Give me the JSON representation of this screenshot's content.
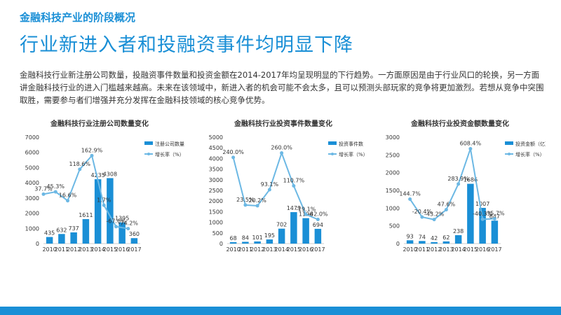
{
  "header": {
    "subtitle": "金融科技产业的阶段概况",
    "title": "行业新进入者和投融资事件均明显下降"
  },
  "body": {
    "paragraph": "金融科技行业新注册公司数量，投融资事件数量和投资金额在2014-2017年均呈现明显的下行趋势。一方面原因是由于行业风口的轮换，另一方面讲金融科技行业的进入门槛越来越高。未来在该领域中，新进入者的机会可能不会太多，且可以预测头部玩家的竞争将更加激烈。若想从竞争中突围取胜，需要参与者们增强并充分发挥在金融科技领域的核心竞争优势。"
  },
  "colors": {
    "accent": "#1a8fd6",
    "bar": "#1a8fd6",
    "line": "#6cb8e4"
  },
  "chart_data": [
    {
      "type": "bar",
      "title": "金融科技行业注册公司数量变化",
      "categories": [
        "2010",
        "2011",
        "2012",
        "2013",
        "2014",
        "2015",
        "2016",
        "2017"
      ],
      "ylim": [
        0,
        7000
      ],
      "yticks": [
        "0",
        "1000",
        "2000",
        "3000",
        "4000",
        "5000",
        "6000",
        "7000"
      ],
      "series": [
        {
          "name": "注册公司数量",
          "type": "bar",
          "values": [
            435,
            632,
            737,
            1611,
            4235,
            4308,
            1395,
            360
          ]
        },
        {
          "name": "增长率（%）",
          "type": "line",
          "values": [
            null,
            45.3,
            16.6,
            118.6,
            162.9,
            1.7,
            -67.6,
            -74.2
          ],
          "x_offset": -1
        }
      ],
      "bar_labels": [
        "435",
        "632",
        "737",
        "1611",
        "4235",
        "4308",
        "1395",
        "360"
      ],
      "line_labels": [
        "37.7%",
        "45.3%",
        "16.6%",
        "118.6%",
        "162.9%",
        "1.7%",
        "-67.6%",
        "-74.2%"
      ],
      "line_values_all": [
        37.7,
        45.3,
        16.6,
        118.6,
        162.9,
        1.7,
        -67.6,
        -74.2
      ],
      "line_range": [
        -100,
        200
      ],
      "legend": "top-right"
    },
    {
      "type": "bar",
      "title": "金融科技行业投资事件数量变化",
      "categories": [
        "2010",
        "2011",
        "2012",
        "2013",
        "2014",
        "2015",
        "2016",
        "2017"
      ],
      "ylim": [
        0,
        5000
      ],
      "yticks": [
        "0",
        "500",
        "1000",
        "1500",
        "2000",
        "2500",
        "3000",
        "3500",
        "4000",
        "4500",
        "5000"
      ],
      "series": [
        {
          "name": "投资事件数",
          "type": "bar",
          "values": [
            68,
            84,
            101,
            195,
            702,
            1479,
            1196,
            694
          ]
        },
        {
          "name": "增长率（%）",
          "type": "line",
          "values": [
            240.0,
            23.5,
            20.2,
            93.1,
            260.0,
            110.7,
            -19.1,
            -42.0
          ]
        }
      ],
      "bar_labels": [
        "68",
        "84",
        "101",
        "195",
        "702",
        "1479",
        "1196",
        "694"
      ],
      "line_labels": [
        "240.0%",
        "23.5%",
        "20.2%",
        "93.1%",
        "260.0%",
        "110.7%",
        "-19.1%",
        "-42.0%"
      ],
      "line_values_all": [
        240.0,
        23.5,
        20.2,
        93.1,
        260.0,
        110.7,
        -19.1,
        -42.0
      ],
      "line_range": [
        -120,
        300
      ],
      "legend": "top-right"
    },
    {
      "type": "bar",
      "title": "金融科技行业投资金额数量变化",
      "categories": [
        "2010",
        "2011",
        "2012",
        "2013",
        "2014",
        "2015",
        "2016",
        "2017"
      ],
      "ylim": [
        0,
        3000
      ],
      "yticks": [
        "0",
        "500",
        "1000",
        "1500",
        "2000",
        "2500",
        "3000"
      ],
      "series": [
        {
          "name": "投资金额（亿）",
          "type": "bar",
          "values": [
            93,
            74,
            42,
            62,
            238,
            1686,
            1007,
            647
          ]
        },
        {
          "name": "增长率（%）",
          "type": "line",
          "values": [
            144.7,
            -20.4,
            -43.2,
            47.6,
            283.9,
            608.4,
            -40.3,
            -35.7
          ]
        }
      ],
      "bar_labels": [
        "93",
        "74",
        "42",
        "62",
        "238",
        "1686",
        "1007",
        "647"
      ],
      "line_labels": [
        "144.7%",
        "-20.4%",
        "-43.2%",
        "47.6%",
        "283.9%",
        "608.4%",
        "-40.3%",
        "-35.7%"
      ],
      "line_values_all": [
        144.7,
        -20.4,
        -43.2,
        47.6,
        283.9,
        608.4,
        -40.3,
        -35.7
      ],
      "line_range": [
        -200,
        650
      ],
      "legend": "top-right"
    }
  ]
}
